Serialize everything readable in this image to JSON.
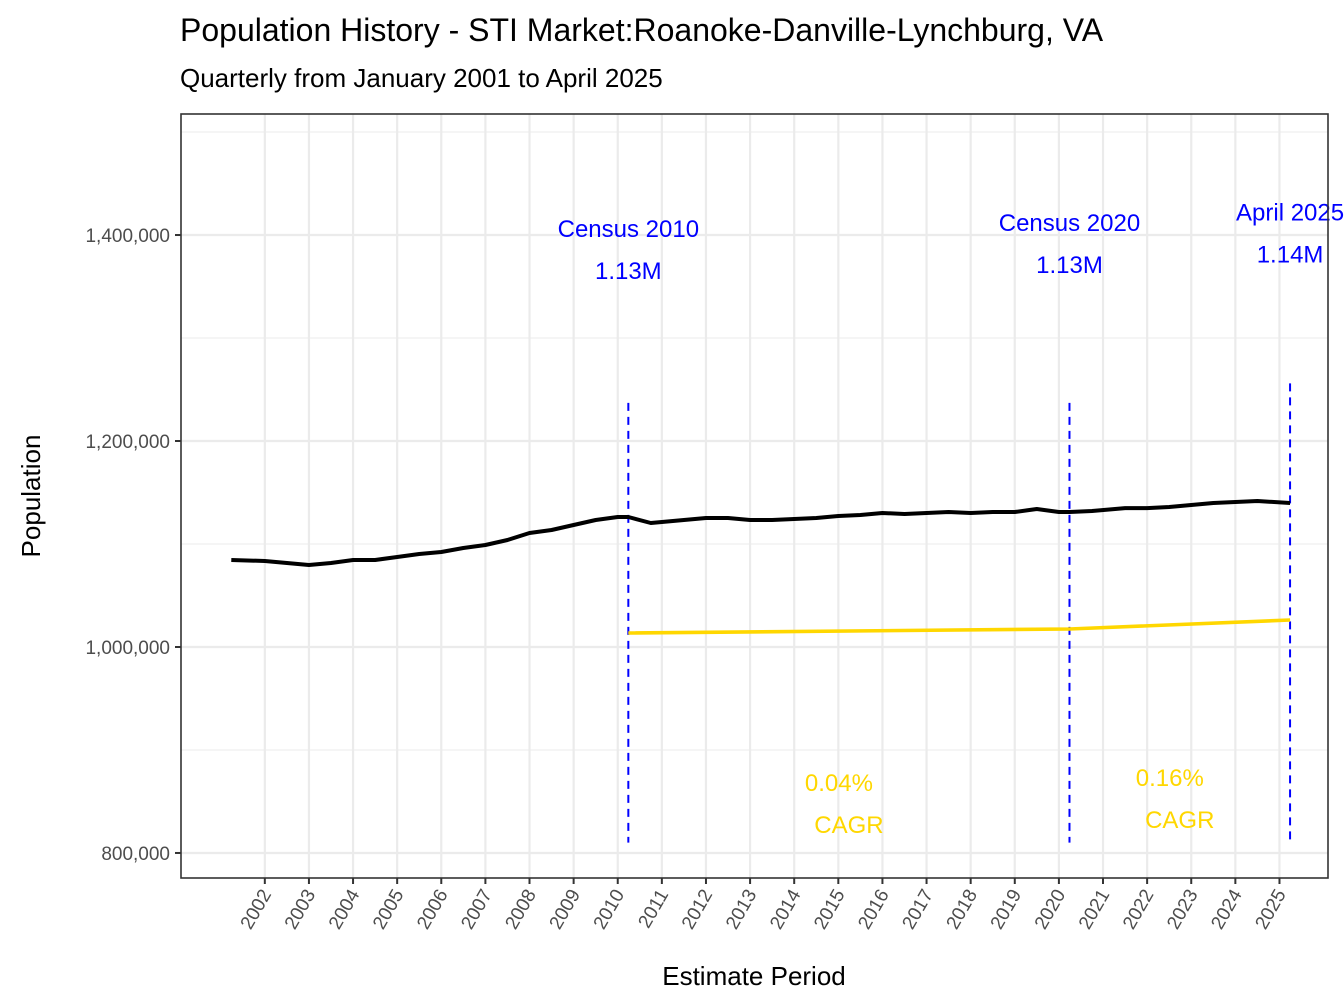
{
  "chart_data": {
    "type": "line",
    "title": "Population History - STI Market:Roanoke-Danville-Lynchburg, VA",
    "subtitle": "Quarterly from January 2001 to April 2025",
    "xlabel": "Estimate Period",
    "ylabel": "Population",
    "xlim": [
      2000.1,
      2026.1
    ],
    "ylim": [
      775700,
      1517500
    ],
    "grid": true,
    "legend": "none",
    "x_ticks": [
      2002,
      2003,
      2004,
      2005,
      2006,
      2007,
      2008,
      2009,
      2010,
      2011,
      2012,
      2013,
      2014,
      2015,
      2016,
      2017,
      2018,
      2019,
      2020,
      2021,
      2022,
      2023,
      2024,
      2025
    ],
    "x_tick_labels": [
      "2002",
      "2003",
      "2004",
      "2005",
      "2006",
      "2007",
      "2008",
      "2009",
      "2010",
      "2011",
      "2012",
      "2013",
      "2014",
      "2015",
      "2016",
      "2017",
      "2018",
      "2019",
      "2020",
      "2021",
      "2022",
      "2023",
      "2024",
      "2025"
    ],
    "y_ticks": [
      800000,
      1000000,
      1200000,
      1400000
    ],
    "y_tick_labels": [
      "800,000",
      "1,000,000",
      "1,200,000",
      "1,400,000"
    ],
    "y_minor_ticks": [
      900000,
      1100000,
      1300000,
      1500000
    ],
    "series": [
      {
        "name": "Population",
        "color": "#000000",
        "x": [
          2001.24,
          2002.0,
          2002.5,
          2003.0,
          2003.5,
          2004.0,
          2004.5,
          2005.0,
          2005.5,
          2006.0,
          2006.5,
          2007.0,
          2007.5,
          2008.0,
          2008.5,
          2009.0,
          2009.5,
          2010.0,
          2010.24,
          2010.75,
          2011.0,
          2011.5,
          2012.0,
          2012.5,
          2013.0,
          2013.5,
          2014.0,
          2014.5,
          2015.0,
          2015.5,
          2016.0,
          2016.5,
          2017.0,
          2017.5,
          2018.0,
          2018.5,
          2019.0,
          2019.5,
          2020.0,
          2020.24,
          2020.75,
          2021.5,
          2022.0,
          2022.5,
          2023.0,
          2023.5,
          2024.0,
          2024.5,
          2025.24
        ],
        "values": [
          1084500,
          1083500,
          1081500,
          1079600,
          1081500,
          1084500,
          1084500,
          1087400,
          1090300,
          1092200,
          1096100,
          1099000,
          1103900,
          1110700,
          1113600,
          1118400,
          1123300,
          1126200,
          1126200,
          1120400,
          1121400,
          1123300,
          1125200,
          1125200,
          1123300,
          1123300,
          1124300,
          1125200,
          1127200,
          1128200,
          1130100,
          1129100,
          1130100,
          1131100,
          1130100,
          1131100,
          1131100,
          1134000,
          1131100,
          1131100,
          1132000,
          1134900,
          1134900,
          1135900,
          1137900,
          1139800,
          1140800,
          1141700,
          1139800
        ]
      },
      {
        "name": "CAGR trend",
        "color": "#ffd700",
        "x": [
          2010.24,
          2020.24,
          2025.24
        ],
        "values": [
          1013600,
          1017500,
          1026200
        ]
      }
    ],
    "vlines": [
      {
        "x": 2010.24,
        "color": "#0000ff",
        "ymin": 810000,
        "ymax": 1237000
      },
      {
        "x": 2020.24,
        "color": "#0000ff",
        "ymin": 810000,
        "ymax": 1237000
      },
      {
        "x": 2025.24,
        "color": "#0000ff",
        "ymin": 810000,
        "ymax": 1256000
      }
    ],
    "annotations": [
      {
        "label": "Census 2010",
        "value": "1.13M",
        "x": 2010.24,
        "y": 1398000,
        "color": "#0000ff"
      },
      {
        "label": "Census 2020",
        "value": "1.13M",
        "x": 2020.24,
        "y": 1404000,
        "color": "#0000ff"
      },
      {
        "label": "April 2025",
        "value": "1.14M",
        "x": 2025.24,
        "y": 1414000,
        "color": "#0000ff"
      }
    ],
    "cagr_labels": [
      {
        "rate": "0.04%",
        "text": "CAGR",
        "x": 2015.24,
        "y": 860000,
        "color": "#ffd700"
      },
      {
        "rate": "0.16%",
        "text": "CAGR",
        "x": 2022.74,
        "y": 865000,
        "color": "#ffd700"
      }
    ]
  }
}
